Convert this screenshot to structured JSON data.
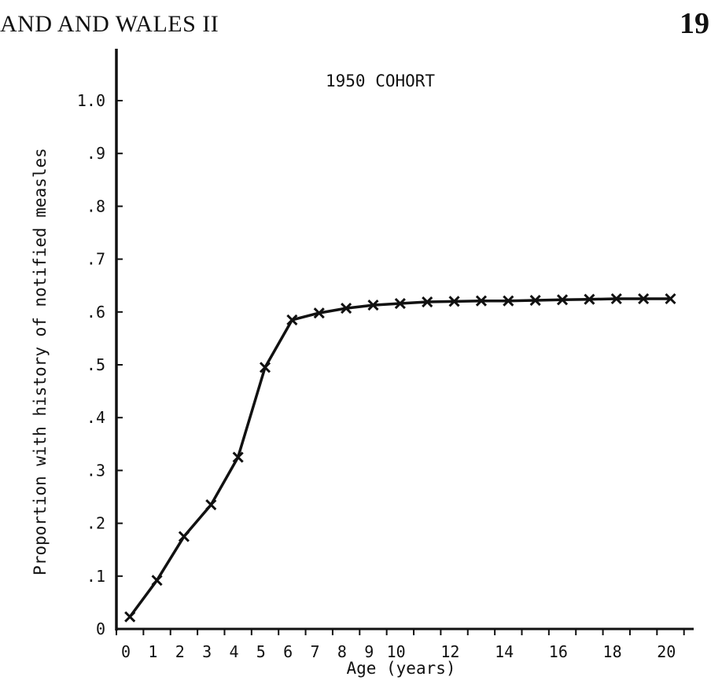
{
  "page": {
    "running_head": "AND AND WALES II",
    "page_number": "19"
  },
  "chart_data": {
    "type": "line",
    "title": "1950 COHORT",
    "xlabel": "Age (years)",
    "ylabel": "Proportion with history of notified measles",
    "xlim": [
      0,
      21.3
    ],
    "ylim": [
      0,
      1.0
    ],
    "x_ticks": [
      0,
      1,
      2,
      3,
      4,
      5,
      6,
      7,
      8,
      9,
      10,
      11,
      12,
      13,
      14,
      15,
      16,
      17,
      18,
      19,
      20,
      21
    ],
    "x_tick_labels": [
      "0",
      "1",
      "2",
      "3",
      "4",
      "5",
      "6",
      "7",
      "8",
      "9",
      "10",
      "",
      "12",
      "",
      "14",
      "",
      "16",
      "",
      "18",
      "",
      "20",
      ""
    ],
    "y_ticks": [
      0,
      0.1,
      0.2,
      0.3,
      0.4,
      0.5,
      0.6,
      0.7,
      0.8,
      0.9,
      1.0
    ],
    "y_tick_labels": [
      "0",
      ".1",
      ".2",
      ".3",
      ".4",
      ".5",
      ".6",
      ".7",
      ".8",
      ".9",
      "1.0"
    ],
    "grid": false,
    "series": [
      {
        "marker": "x",
        "color": "#111111",
        "x": [
          0.5,
          1.5,
          2.5,
          3.5,
          4.5,
          5.5,
          6.5,
          7.5,
          8.5,
          9.5,
          10.5,
          11.5,
          12.5,
          13.5,
          14.5,
          15.5,
          16.5,
          17.5,
          18.5,
          19.5,
          20.5
        ],
        "y": [
          0.023,
          0.092,
          0.175,
          0.235,
          0.325,
          0.495,
          0.585,
          0.598,
          0.607,
          0.613,
          0.616,
          0.619,
          0.62,
          0.621,
          0.621,
          0.622,
          0.623,
          0.624,
          0.625,
          0.625,
          0.625
        ]
      }
    ]
  }
}
